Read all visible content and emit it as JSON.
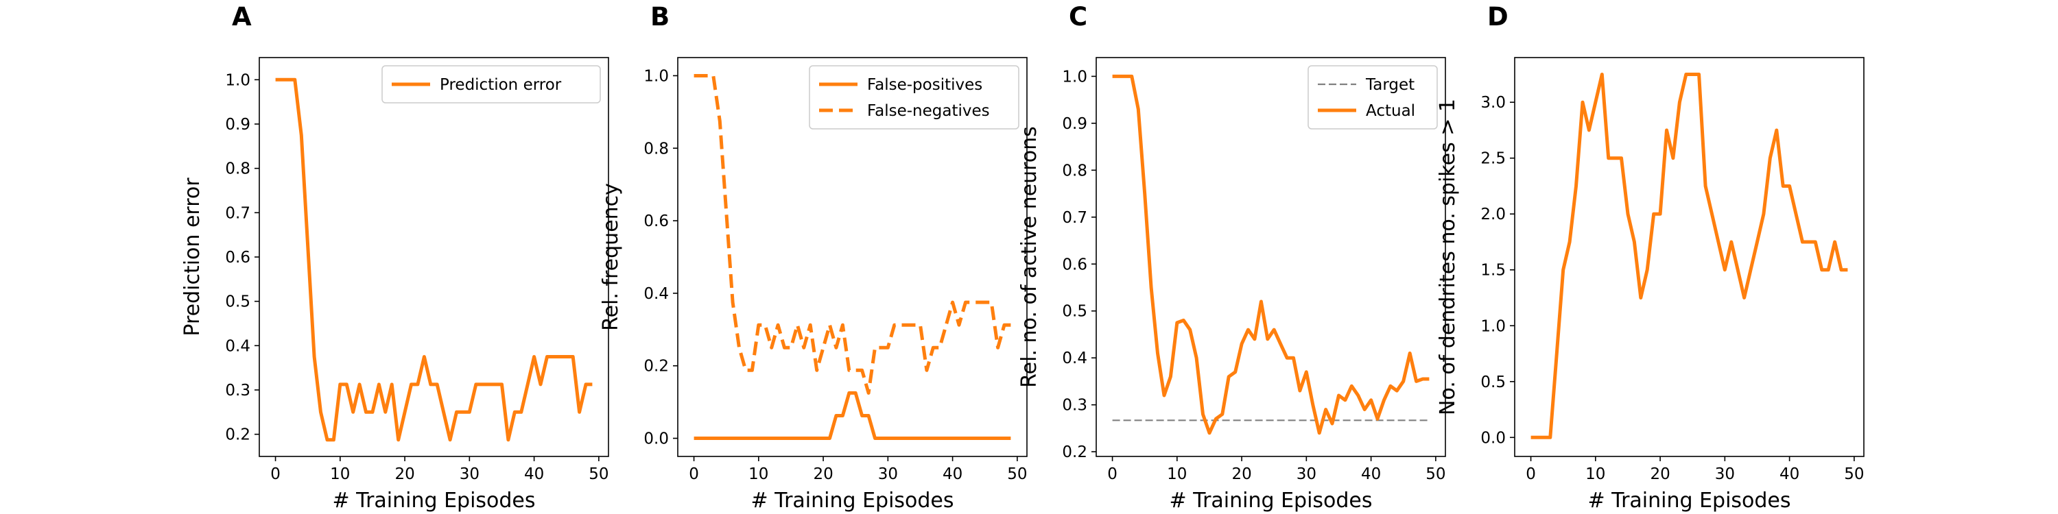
{
  "chart_data": [
    {
      "panel": "A",
      "type": "line",
      "xlabel": "# Training Episodes",
      "ylabel": "Prediction error",
      "xlim": [
        -2.5,
        51.5
      ],
      "ylim": [
        0.15,
        1.05
      ],
      "xticks": [
        0,
        10,
        20,
        30,
        40,
        50
      ],
      "yticks": [
        0.2,
        0.3,
        0.4,
        0.5,
        0.6,
        0.7,
        0.8,
        0.9,
        1.0
      ],
      "ytick_labels": [
        "0.2",
        "0.3",
        "0.4",
        "0.5",
        "0.6",
        "0.7",
        "0.8",
        "0.9",
        "1.0"
      ],
      "grid": false,
      "legend": {
        "position": "top-right"
      },
      "series": [
        {
          "name": "Prediction error",
          "color": "#ff7f0e",
          "style": "solid",
          "x": [
            0,
            1,
            2,
            3,
            4,
            5,
            6,
            7,
            8,
            9,
            10,
            11,
            12,
            13,
            14,
            15,
            16,
            17,
            18,
            19,
            20,
            21,
            22,
            23,
            24,
            25,
            26,
            27,
            28,
            29,
            30,
            31,
            32,
            33,
            34,
            35,
            36,
            37,
            38,
            39,
            40,
            41,
            42,
            43,
            44,
            45,
            46,
            47,
            48,
            49
          ],
          "values": [
            1.0,
            1.0,
            1.0,
            1.0,
            0.875,
            0.625,
            0.375,
            0.25,
            0.1875,
            0.1875,
            0.3125,
            0.3125,
            0.25,
            0.3125,
            0.25,
            0.25,
            0.3125,
            0.25,
            0.3125,
            0.1875,
            0.25,
            0.3125,
            0.3125,
            0.375,
            0.3125,
            0.3125,
            0.25,
            0.1875,
            0.25,
            0.25,
            0.25,
            0.3125,
            0.3125,
            0.3125,
            0.3125,
            0.3125,
            0.1875,
            0.25,
            0.25,
            0.3125,
            0.375,
            0.3125,
            0.375,
            0.375,
            0.375,
            0.375,
            0.375,
            0.25,
            0.3125,
            0.3125
          ]
        }
      ]
    },
    {
      "panel": "B",
      "type": "line",
      "xlabel": "# Training Episodes",
      "ylabel": "Rel. frequency",
      "xlim": [
        -2.5,
        51.5
      ],
      "ylim": [
        -0.05,
        1.05
      ],
      "xticks": [
        0,
        10,
        20,
        30,
        40,
        50
      ],
      "yticks": [
        0.0,
        0.2,
        0.4,
        0.6,
        0.8,
        1.0
      ],
      "ytick_labels": [
        "0.0",
        "0.2",
        "0.4",
        "0.6",
        "0.8",
        "1.0"
      ],
      "grid": false,
      "legend": {
        "position": "top-right"
      },
      "series": [
        {
          "name": "False-positives",
          "color": "#ff7f0e",
          "style": "solid",
          "x": [
            0,
            1,
            2,
            3,
            4,
            5,
            6,
            7,
            8,
            9,
            10,
            11,
            12,
            13,
            14,
            15,
            16,
            17,
            18,
            19,
            20,
            21,
            22,
            23,
            24,
            25,
            26,
            27,
            28,
            29,
            30,
            31,
            32,
            33,
            34,
            35,
            36,
            37,
            38,
            39,
            40,
            41,
            42,
            43,
            44,
            45,
            46,
            47,
            48,
            49
          ],
          "values": [
            0,
            0,
            0,
            0,
            0,
            0,
            0,
            0,
            0,
            0,
            0,
            0,
            0,
            0,
            0,
            0,
            0,
            0,
            0,
            0,
            0,
            0,
            0.0625,
            0.0625,
            0.125,
            0.125,
            0.0625,
            0.0625,
            0,
            0,
            0,
            0,
            0,
            0,
            0,
            0,
            0,
            0,
            0,
            0,
            0,
            0,
            0,
            0,
            0,
            0,
            0,
            0,
            0,
            0
          ]
        },
        {
          "name": "False-negatives",
          "color": "#ff7f0e",
          "style": "dashed",
          "x": [
            0,
            1,
            2,
            3,
            4,
            5,
            6,
            7,
            8,
            9,
            10,
            11,
            12,
            13,
            14,
            15,
            16,
            17,
            18,
            19,
            20,
            21,
            22,
            23,
            24,
            25,
            26,
            27,
            28,
            29,
            30,
            31,
            32,
            33,
            34,
            35,
            36,
            37,
            38,
            39,
            40,
            41,
            42,
            43,
            44,
            45,
            46,
            47,
            48,
            49
          ],
          "values": [
            1.0,
            1.0,
            1.0,
            1.0,
            0.875,
            0.625,
            0.375,
            0.25,
            0.1875,
            0.1875,
            0.3125,
            0.3125,
            0.25,
            0.3125,
            0.25,
            0.25,
            0.3125,
            0.25,
            0.3125,
            0.1875,
            0.25,
            0.3125,
            0.25,
            0.3125,
            0.1875,
            0.1875,
            0.1875,
            0.125,
            0.25,
            0.25,
            0.25,
            0.3125,
            0.3125,
            0.3125,
            0.3125,
            0.3125,
            0.1875,
            0.25,
            0.25,
            0.3125,
            0.375,
            0.3125,
            0.375,
            0.375,
            0.375,
            0.375,
            0.375,
            0.25,
            0.3125,
            0.3125
          ]
        }
      ]
    },
    {
      "panel": "C",
      "type": "line",
      "xlabel": "# Training Episodes",
      "ylabel": "Rel. no. of active neurons",
      "xlim": [
        -2.5,
        51.5
      ],
      "ylim": [
        0.19,
        1.04
      ],
      "xticks": [
        0,
        10,
        20,
        30,
        40,
        50
      ],
      "yticks": [
        0.2,
        0.3,
        0.4,
        0.5,
        0.6,
        0.7,
        0.8,
        0.9,
        1.0
      ],
      "ytick_labels": [
        "0.2",
        "0.3",
        "0.4",
        "0.5",
        "0.6",
        "0.7",
        "0.8",
        "0.9",
        "1.0"
      ],
      "grid": false,
      "legend": {
        "position": "top-right"
      },
      "series": [
        {
          "name": "Target",
          "color": "#808080",
          "style": "dashed",
          "x": [
            0,
            49
          ],
          "values": [
            0.267,
            0.267
          ]
        },
        {
          "name": "Actual",
          "color": "#ff7f0e",
          "style": "solid",
          "x": [
            0,
            1,
            2,
            3,
            4,
            5,
            6,
            7,
            8,
            9,
            10,
            11,
            12,
            13,
            14,
            15,
            16,
            17,
            18,
            19,
            20,
            21,
            22,
            23,
            24,
            25,
            26,
            27,
            28,
            29,
            30,
            31,
            32,
            33,
            34,
            35,
            36,
            37,
            38,
            39,
            40,
            41,
            42,
            43,
            44,
            45,
            46,
            47,
            48,
            49
          ],
          "values": [
            1.0,
            1.0,
            1.0,
            1.0,
            0.93,
            0.75,
            0.55,
            0.41,
            0.32,
            0.36,
            0.475,
            0.48,
            0.46,
            0.4,
            0.28,
            0.24,
            0.27,
            0.28,
            0.36,
            0.37,
            0.43,
            0.46,
            0.44,
            0.52,
            0.44,
            0.46,
            0.43,
            0.4,
            0.4,
            0.33,
            0.37,
            0.3,
            0.24,
            0.29,
            0.26,
            0.32,
            0.31,
            0.34,
            0.32,
            0.29,
            0.31,
            0.27,
            0.31,
            0.34,
            0.33,
            0.35,
            0.41,
            0.35,
            0.355,
            0.355
          ]
        }
      ]
    },
    {
      "panel": "D",
      "type": "line",
      "xlabel": "# Training Episodes",
      "ylabel": "No. of dendrites no. spikes > 1",
      "xlim": [
        -2.5,
        51.5
      ],
      "ylim": [
        -0.17,
        3.4
      ],
      "xticks": [
        0,
        10,
        20,
        30,
        40,
        50
      ],
      "yticks": [
        0.0,
        0.5,
        1.0,
        1.5,
        2.0,
        2.5,
        3.0
      ],
      "ytick_labels": [
        "0.0",
        "0.5",
        "1.0",
        "1.5",
        "2.0",
        "2.5",
        "3.0"
      ],
      "grid": false,
      "legend": null,
      "series": [
        {
          "name": "",
          "color": "#ff7f0e",
          "style": "solid",
          "x": [
            0,
            1,
            2,
            3,
            4,
            5,
            6,
            7,
            8,
            9,
            10,
            11,
            12,
            13,
            14,
            15,
            16,
            17,
            18,
            19,
            20,
            21,
            22,
            23,
            24,
            25,
            26,
            27,
            28,
            29,
            30,
            31,
            32,
            33,
            34,
            35,
            36,
            37,
            38,
            39,
            40,
            41,
            42,
            43,
            44,
            45,
            46,
            47,
            48,
            49
          ],
          "values": [
            0,
            0,
            0,
            0,
            0.75,
            1.5,
            1.75,
            2.25,
            3.0,
            2.75,
            3.0,
            3.25,
            2.5,
            2.5,
            2.5,
            2.0,
            1.75,
            1.25,
            1.5,
            2.0,
            2.0,
            2.75,
            2.5,
            3.0,
            3.25,
            3.25,
            3.25,
            2.25,
            2.0,
            1.75,
            1.5,
            1.75,
            1.5,
            1.25,
            1.5,
            1.75,
            2.0,
            2.5,
            2.75,
            2.25,
            2.25,
            2.0,
            1.75,
            1.75,
            1.75,
            1.5,
            1.5,
            1.75,
            1.5,
            1.5
          ]
        }
      ]
    }
  ]
}
